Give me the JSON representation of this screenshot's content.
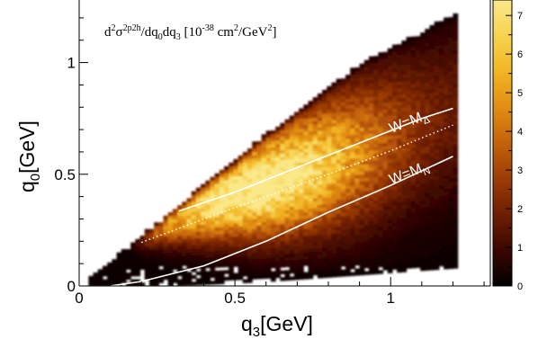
{
  "chart_data": {
    "type": "heatmap",
    "title_parts": {
      "main": "d",
      "sup1": "2",
      "sigma": "σ",
      "sup2": "2p2h",
      "rest": "/dq",
      "sub0": "0",
      "mid": "dq",
      "sub3": "3",
      "bracket_open": " [10",
      "sup_exp": "-38",
      "unit1": " cm",
      "sup_cm": "2",
      "unit2": "/GeV",
      "sup_gev": "2",
      "bracket_close": "]"
    },
    "xlabel": {
      "main": "q",
      "sub": "3",
      "unit": "[GeV]"
    },
    "ylabel": {
      "main": "q",
      "sub": "0",
      "unit": "[GeV]"
    },
    "xlim": [
      0,
      1.32
    ],
    "ylim": [
      0,
      1.28
    ],
    "zlim": [
      0,
      7.4
    ],
    "x_ticks": [
      {
        "value": 0,
        "label": "0"
      },
      {
        "value": 0.5,
        "label": "0.5"
      },
      {
        "value": 1,
        "label": "1"
      }
    ],
    "y_ticks": [
      {
        "value": 0,
        "label": "0"
      },
      {
        "value": 0.5,
        "label": "0.5"
      },
      {
        "value": 1,
        "label": "1"
      }
    ],
    "z_ticks": [
      {
        "value": 0,
        "label": "0"
      },
      {
        "value": 1,
        "label": "1"
      },
      {
        "value": 2,
        "label": "2"
      },
      {
        "value": 3,
        "label": "3"
      },
      {
        "value": 4,
        "label": "4"
      },
      {
        "value": 5,
        "label": "5"
      },
      {
        "value": 6,
        "label": "6"
      },
      {
        "value": 7,
        "label": "7"
      }
    ],
    "region": {
      "q3_min": 0.03,
      "q3_max": 1.2,
      "upper_edge": [
        [
          0.03,
          0.03
        ],
        [
          0.3,
          0.34
        ],
        [
          0.6,
          0.68
        ],
        [
          0.9,
          0.99
        ],
        [
          1.2,
          1.21
        ]
      ],
      "lower_edge": [
        [
          0.03,
          0.0
        ],
        [
          0.3,
          0.0
        ],
        [
          0.6,
          0.02
        ],
        [
          0.9,
          0.05
        ],
        [
          1.2,
          0.08
        ]
      ]
    },
    "grid": {
      "q3_step": 0.015,
      "q0_step": 0.015
    },
    "curves": [
      {
        "label_main": "W=M",
        "label_sub": "Δ",
        "style": "solid",
        "points": [
          [
            0.32,
            0.335
          ],
          [
            0.5,
            0.42
          ],
          [
            0.7,
            0.53
          ],
          [
            0.9,
            0.64
          ],
          [
            1.1,
            0.75
          ],
          [
            1.2,
            0.795
          ]
        ]
      },
      {
        "label_main": "",
        "label_sub": "",
        "style": "dotted",
        "points": [
          [
            0.2,
            0.195
          ],
          [
            0.4,
            0.3
          ],
          [
            0.6,
            0.4
          ],
          [
            0.8,
            0.5
          ],
          [
            1.0,
            0.605
          ],
          [
            1.2,
            0.72
          ]
        ]
      },
      {
        "label_main": "W=M",
        "label_sub": "N",
        "style": "solid",
        "points": [
          [
            0.1,
            0.0
          ],
          [
            0.2,
            0.02
          ],
          [
            0.4,
            0.09
          ],
          [
            0.6,
            0.2
          ],
          [
            0.8,
            0.33
          ],
          [
            1.0,
            0.45
          ],
          [
            1.2,
            0.58
          ]
        ]
      }
    ],
    "colors": {
      "colormap": [
        "#000000",
        "#3a0600",
        "#6e1e02",
        "#9c3c05",
        "#c4620a",
        "#e18d12",
        "#f2b524",
        "#f7d34e",
        "#fbe88a"
      ],
      "frame": "#000000",
      "curve": "#ffffff",
      "background": "#ffffff"
    }
  }
}
